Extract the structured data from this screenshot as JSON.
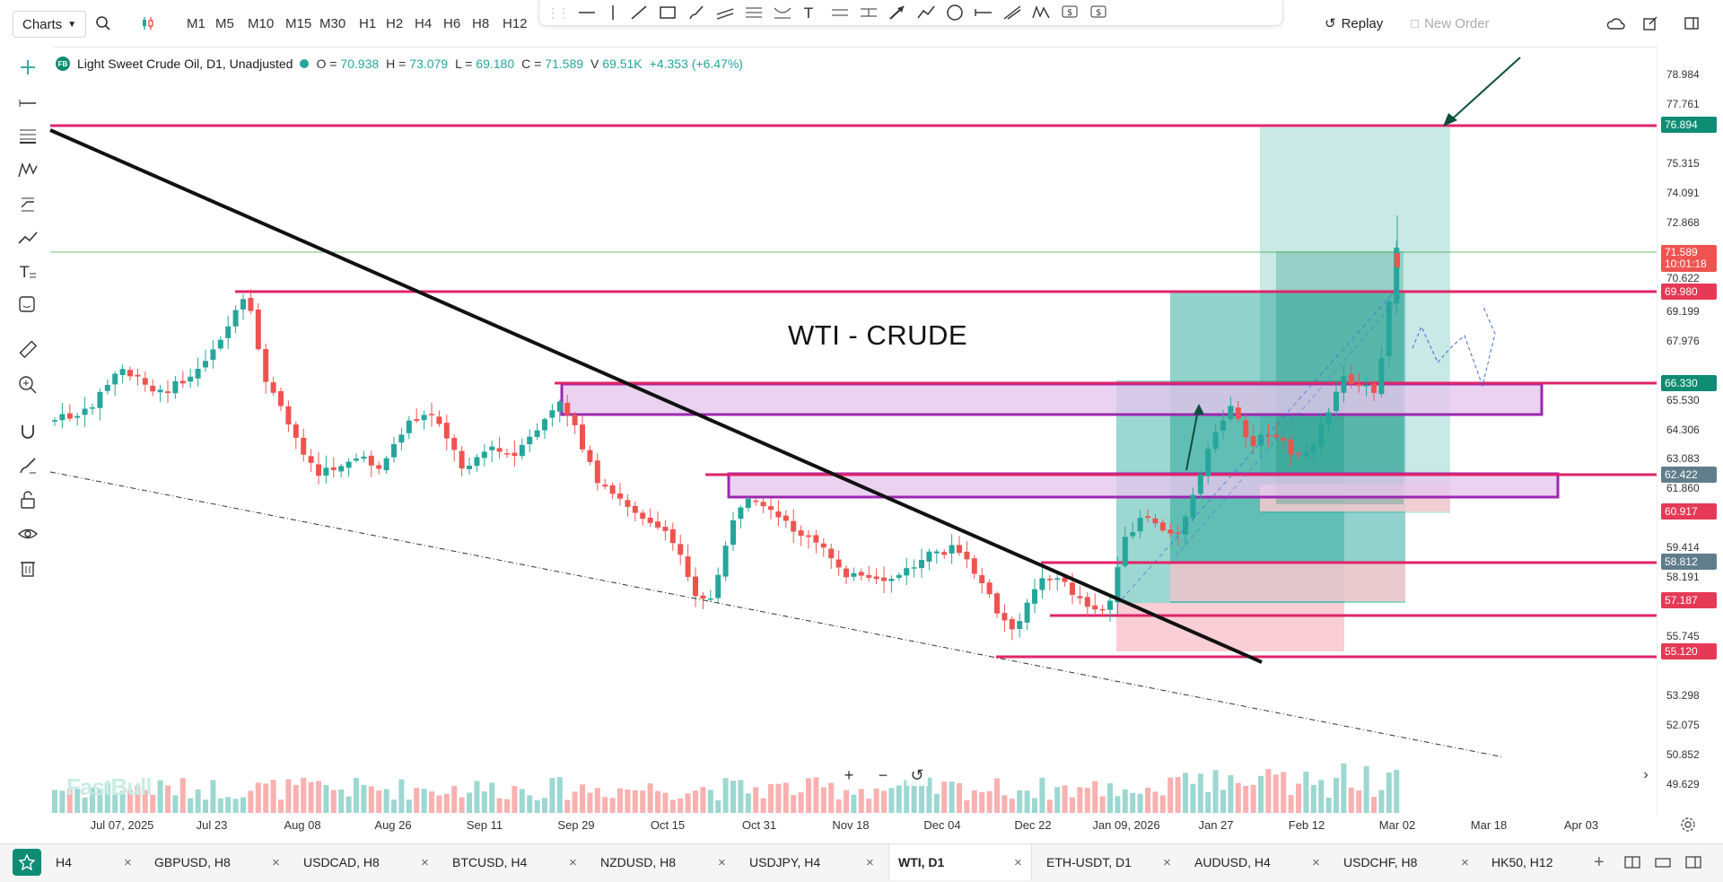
{
  "toolbar": {
    "charts_label": "Charts",
    "timeframes": [
      "M1",
      "M5",
      "M10",
      "M15",
      "M30",
      "H1",
      "H2",
      "H4",
      "H6",
      "H8",
      "H12"
    ],
    "replay_label": "Replay",
    "new_order_label": "New Order"
  },
  "legend": {
    "badge": "FB",
    "symbol": "Light Sweet Crude Oil, D1, Unadjusted",
    "open_label": "O =",
    "open": "70.938",
    "high_label": "H =",
    "high": "73.079",
    "low_label": "L =",
    "low": "69.180",
    "close_label": "C =",
    "close": "71.589",
    "volume_label": "V",
    "volume": "69.51K",
    "change": "+4.353 (+6.47%)"
  },
  "annotation": "WTI - CRUDE",
  "watermark": "FastBull",
  "price_axis": {
    "ticks": [
      "78.984",
      "77.761",
      "75.315",
      "74.091",
      "72.868",
      "70.622",
      "69.199",
      "67.976",
      "65.530",
      "64.306",
      "63.083",
      "61.860",
      "59.414",
      "58.191",
      "55.745",
      "53.298",
      "52.075",
      "50.852",
      "49.629"
    ],
    "tags": [
      {
        "label": "76.894",
        "color": "#0e8c74"
      },
      {
        "label": "71.589",
        "color": "#ef5350",
        "sub": "10:01:18"
      },
      {
        "label": "69.980",
        "color": "#e53955"
      },
      {
        "label": "66.330",
        "color": "#0e8c74"
      },
      {
        "label": "62.422",
        "color": "#607d8b"
      },
      {
        "label": "60.917",
        "color": "#e53955"
      },
      {
        "label": "58.812",
        "color": "#607d8b"
      },
      {
        "label": "57.187",
        "color": "#e53955"
      },
      {
        "label": "55.120",
        "color": "#e53955"
      }
    ]
  },
  "date_axis": [
    "Jul 07, 2025",
    "Jul 23",
    "Aug 08",
    "Aug 26",
    "Sep 11",
    "Sep 29",
    "Oct 15",
    "Oct 31",
    "Nov 18",
    "Dec 04",
    "Dec 22",
    "Jan 09, 2026",
    "Jan 27",
    "Feb 12",
    "Mar 02",
    "Mar 18",
    "Apr 03"
  ],
  "tabs": [
    {
      "label": "H4",
      "active": false
    },
    {
      "label": "GBPUSD, H8",
      "active": false
    },
    {
      "label": "USDCAD, H8",
      "active": false
    },
    {
      "label": "BTCUSD, H4",
      "active": false
    },
    {
      "label": "NZDUSD, H8",
      "active": false
    },
    {
      "label": "USDJPY, H4",
      "active": false
    },
    {
      "label": "WTI, D1",
      "active": true
    },
    {
      "label": "ETH-USDT, D1",
      "active": false
    },
    {
      "label": "AUDUSD, H4",
      "active": false
    },
    {
      "label": "USDCHF, H8",
      "active": false
    },
    {
      "label": "HK50, H12",
      "active": false
    }
  ],
  "colors": {
    "bull": "#26a69a",
    "bear": "#ef5350",
    "level": "#e0246a",
    "zone": "#9c27b0",
    "zone_fill": "#e6c7ee",
    "position_green": "#26a69a",
    "position_red": "#f8c9cf"
  },
  "icons": [
    "plus-icon",
    "hline-icon",
    "fib-icon",
    "pattern-icon",
    "projection-icon",
    "trend-icon",
    "text-icon",
    "emoji-icon",
    "ruler-icon",
    "zoom-in-icon",
    "magnet-icon",
    "brush-icon",
    "lock-icon",
    "eye-icon",
    "trash-icon"
  ]
}
